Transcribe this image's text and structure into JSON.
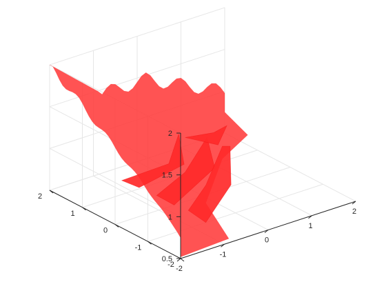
{
  "chart_data": {
    "type": "surface-3d",
    "title": "",
    "xlabel": "",
    "ylabel": "",
    "zlabel": "",
    "surface_color": "#ff3b3b",
    "grid": true,
    "box": false,
    "view": "default-3d",
    "xlim": [
      -2,
      2
    ],
    "ylim": [
      -2,
      2
    ],
    "zlim": [
      0.5,
      2
    ],
    "x_ticks": [
      {
        "value": -2,
        "label": "-2"
      },
      {
        "value": -1,
        "label": "-1"
      },
      {
        "value": 0,
        "label": "0"
      },
      {
        "value": 1,
        "label": "1"
      },
      {
        "value": 2,
        "label": "2"
      }
    ],
    "y_ticks": [
      {
        "value": -2,
        "label": "-2"
      },
      {
        "value": -1,
        "label": "-1"
      },
      {
        "value": 0,
        "label": "0"
      },
      {
        "value": 1,
        "label": "1"
      },
      {
        "value": 2,
        "label": "2"
      }
    ],
    "z_ticks": [
      {
        "value": 0.5,
        "label": "0.5"
      },
      {
        "value": 1,
        "label": "1"
      },
      {
        "value": 1.5,
        "label": "1.5"
      },
      {
        "value": 2,
        "label": "2"
      }
    ],
    "surface_features": {
      "left_wall_peak_z": 2.0,
      "right_wall_peak_z": 1.45,
      "center_saddle_z": 0.8,
      "corner_z": 0.75
    }
  }
}
